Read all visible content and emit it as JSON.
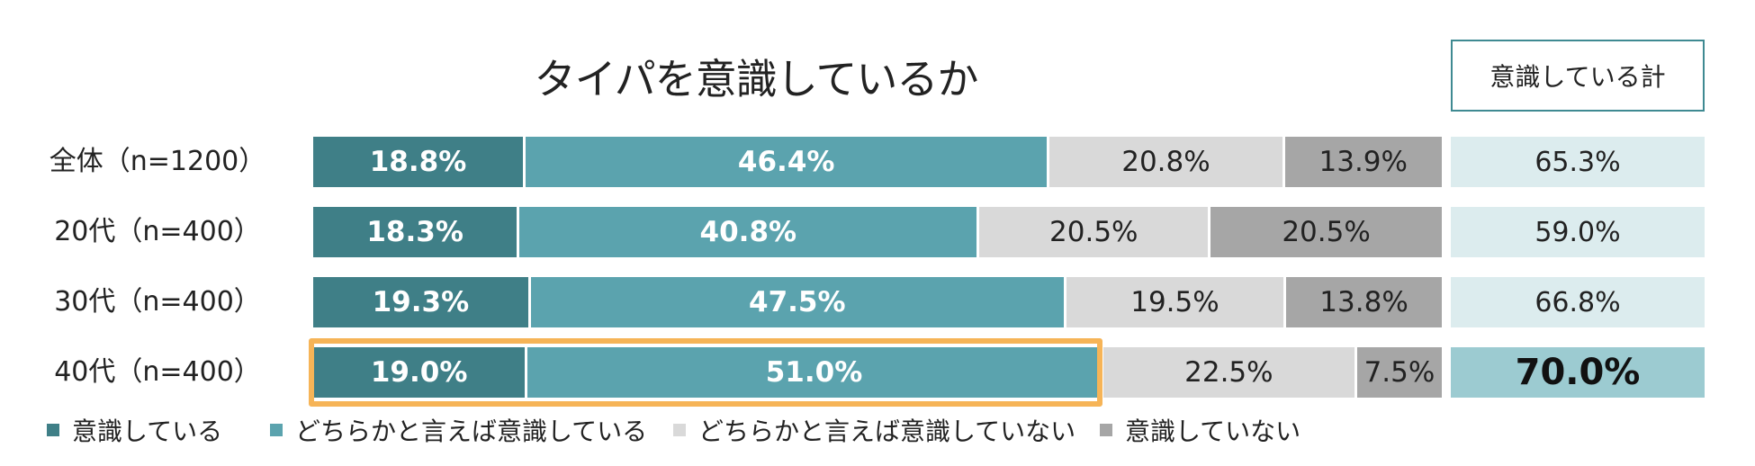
{
  "chart_data": {
    "type": "bar",
    "orientation": "horizontal",
    "stacked": true,
    "normalized_percent": true,
    "title": "タイパを意識しているか",
    "categories": [
      "全体（n=1200）",
      "20代（n=400）",
      "30代（n=400）",
      "40代（n=400）"
    ],
    "series": [
      {
        "name": "意識している",
        "color": "#3f7f87",
        "values": [
          18.8,
          18.3,
          19.3,
          19.0
        ],
        "labels": [
          "18.8%",
          "18.3%",
          "19.3%",
          "19.0%"
        ]
      },
      {
        "name": "どちらかと言えば意識している",
        "color": "#5ba3ae",
        "values": [
          46.4,
          40.8,
          47.5,
          51.0
        ],
        "labels": [
          "46.4%",
          "40.8%",
          "47.5%",
          "51.0%"
        ]
      },
      {
        "name": "どちらかと言えば意識していない",
        "color": "#d9d9d9",
        "values": [
          20.8,
          20.5,
          19.5,
          22.5
        ],
        "labels": [
          "20.8%",
          "20.5%",
          "19.5%",
          "22.5%"
        ]
      },
      {
        "name": "意識していない",
        "color": "#a6a6a6",
        "values": [
          13.9,
          20.5,
          13.8,
          7.5
        ],
        "labels": [
          "13.9%",
          "20.5%",
          "13.8%",
          "7.5%"
        ]
      }
    ],
    "summary_column": {
      "header": "意識している計",
      "values": [
        65.3,
        59.0,
        66.8,
        70.0
      ],
      "labels": [
        "65.3%",
        "59.0%",
        "66.8%",
        "70.0%"
      ],
      "highlighted_index": 3
    },
    "highlight": {
      "row_index": 3,
      "series": [
        "意識している",
        "どちらかと言えば意識している"
      ],
      "color": "#f6b457"
    },
    "legend_position": "bottom"
  }
}
